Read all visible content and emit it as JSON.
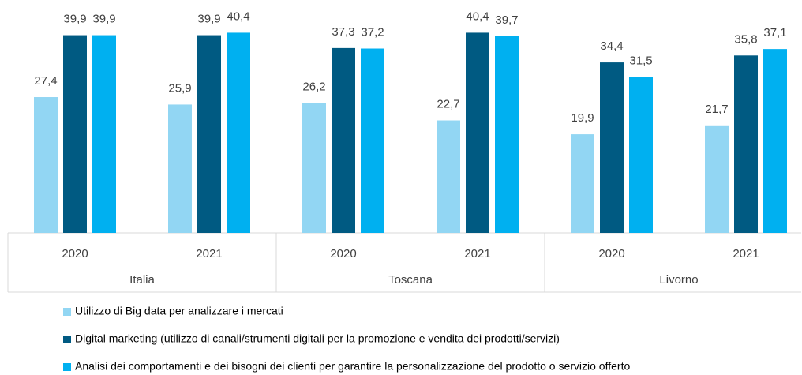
{
  "chart_data": {
    "type": "bar",
    "categories": [
      "2020",
      "2021",
      "2020",
      "2021",
      "2020",
      "2021"
    ],
    "groups": [
      "Italia",
      "Toscana",
      "Livorno"
    ],
    "series": [
      {
        "name": "Utilizzo di Big data per analizzare i mercati",
        "color": "#92d6f3",
        "values": [
          27.4,
          25.9,
          26.2,
          22.7,
          19.9,
          21.7
        ],
        "value_labels": [
          "27,4",
          "25,9",
          "26,2",
          "22,7",
          "19,9",
          "21,7"
        ]
      },
      {
        "name": "Digital marketing (utilizzo di canali/strumenti digitali per la promozione e vendita dei prodotti/servizi)",
        "color": "#005a82",
        "values": [
          39.9,
          39.9,
          37.3,
          40.4,
          34.4,
          35.8
        ],
        "value_labels": [
          "39,9",
          "39,9",
          "37,3",
          "40,4",
          "34,4",
          "35,8"
        ]
      },
      {
        "name": "Analisi dei comportamenti e dei bisogni dei clienti per garantire la personalizzazione del prodotto o servizio offerto",
        "color": "#00b0f0",
        "values": [
          39.9,
          40.4,
          37.2,
          39.7,
          31.5,
          37.1
        ],
        "value_labels": [
          "39,9",
          "40,4",
          "37,2",
          "39,7",
          "31,5",
          "37,1"
        ]
      }
    ],
    "ylim": [
      0,
      47
    ]
  }
}
